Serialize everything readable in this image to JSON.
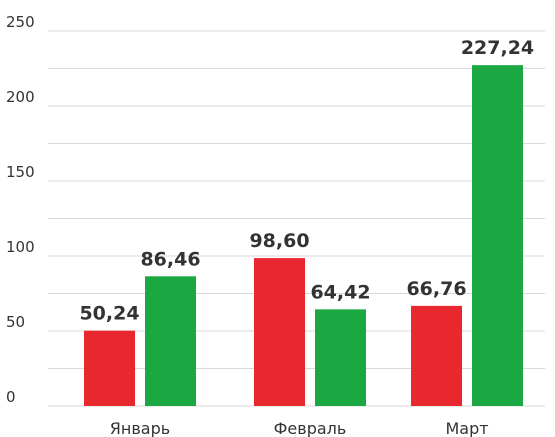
{
  "chart_data": {
    "type": "bar",
    "categories": [
      "Январь",
      "Февраль",
      "Март"
    ],
    "series": [
      {
        "color": "#e8272f",
        "values": [
          50.24,
          98.6,
          66.76
        ],
        "labels": [
          "50,24",
          "98,60",
          "66,76"
        ]
      },
      {
        "color": "#1ba843",
        "values": [
          86.46,
          64.42,
          227.24
        ],
        "labels": [
          "86,46",
          "64,42",
          "227,24"
        ]
      }
    ],
    "yticks": [
      0,
      50,
      100,
      150,
      200,
      250
    ],
    "ytick_labels": [
      "0",
      "50",
      "100",
      "150",
      "200",
      "250"
    ],
    "ylim": [
      0,
      250
    ],
    "grid": true,
    "legend": "none"
  }
}
